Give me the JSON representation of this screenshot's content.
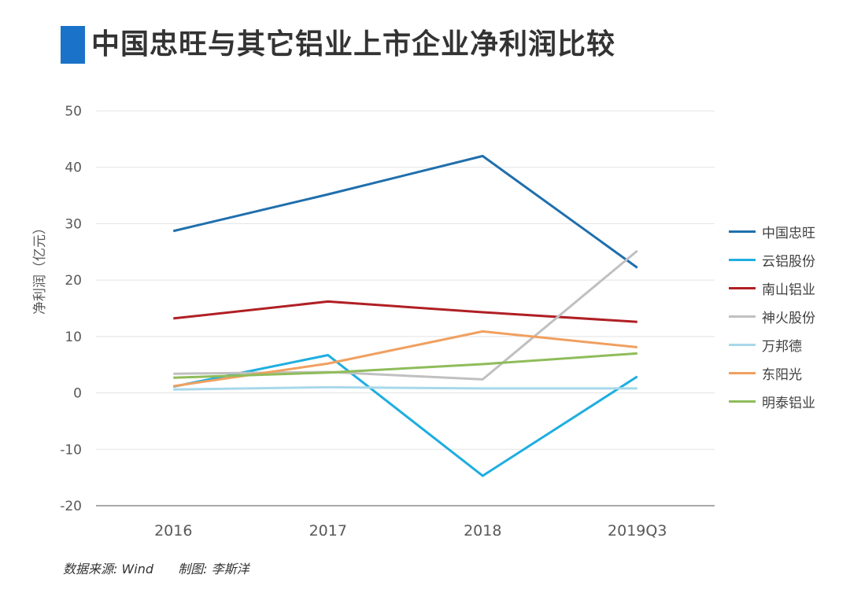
{
  "title": "中国忠旺与其它铝业上市企业净利润比较",
  "footer": {
    "source": "数据来源: Wind",
    "credit": "制图: 李斯洋"
  },
  "chart_data": {
    "type": "line",
    "title": "中国忠旺与其它铝业上市企业净利润比较",
    "ylabel": "净利润（亿元）",
    "xlabel": "",
    "categories": [
      "2016",
      "2017",
      "2018",
      "2019Q3"
    ],
    "ylim": [
      -20,
      50
    ],
    "yticks": [
      50,
      40,
      30,
      20,
      10,
      0,
      -10,
      -20
    ],
    "grid": true,
    "legend_position": "right",
    "series": [
      {
        "name": "中国忠旺",
        "color": "#1f6fad",
        "values": [
          28.7,
          35.2,
          42.0,
          22.2
        ]
      },
      {
        "name": "云铝股份",
        "color": "#1eaee0",
        "values": [
          1.1,
          6.7,
          -14.7,
          2.9
        ]
      },
      {
        "name": "南山铝业",
        "color": "#b01f24",
        "values": [
          13.2,
          16.2,
          14.3,
          12.6
        ]
      },
      {
        "name": "神火股份",
        "color": "#c0c0c0",
        "values": [
          3.4,
          3.7,
          2.4,
          25.2
        ]
      },
      {
        "name": "万邦德",
        "color": "#a8d8ea",
        "values": [
          0.6,
          1.0,
          0.8,
          0.8
        ]
      },
      {
        "name": "东阳光",
        "color": "#f0a060",
        "values": [
          1.2,
          5.2,
          10.9,
          8.1
        ]
      },
      {
        "name": "明泰铝业",
        "color": "#8fbc5a",
        "values": [
          2.7,
          3.6,
          5.1,
          7.0
        ]
      }
    ]
  }
}
